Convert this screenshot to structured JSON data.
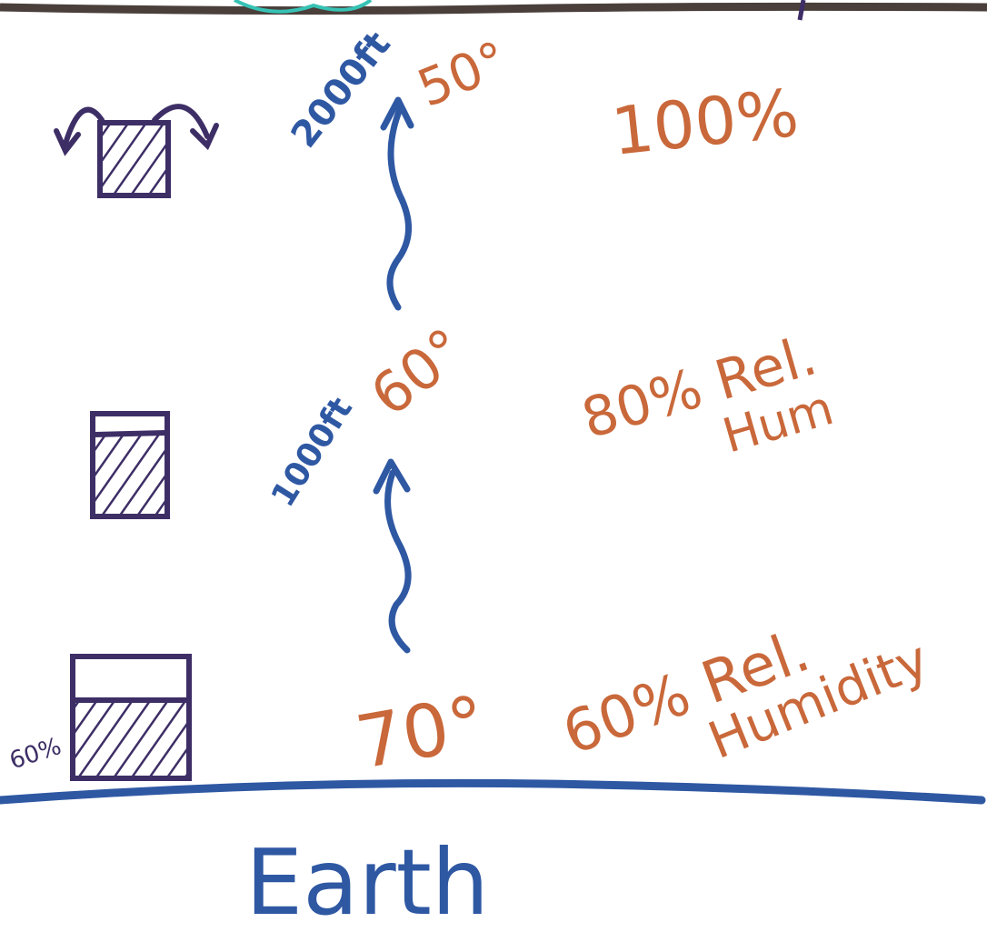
{
  "colors": {
    "blue_ink": "#2f58a3",
    "orange_ink": "#c9683a",
    "purple_ink": "#3d2e66",
    "top_border": "#4a3f3a",
    "teal_scribble": "#36c2b4"
  },
  "altitudes": {
    "high": "2000ft",
    "mid": "1000ft"
  },
  "temperatures": {
    "high": "50°",
    "mid": "60°",
    "ground": "70°"
  },
  "humidity": {
    "high": "100%",
    "mid_line1": "80% Rel.",
    "mid_line2": "Hum",
    "ground_line1": "60% Rel.",
    "ground_line2": "Humidity"
  },
  "ground_box_label": "60%",
  "ground_label": "Earth",
  "boxes": [
    {
      "level": "top",
      "fill_fraction": 1.0
    },
    {
      "level": "middle",
      "fill_fraction": 0.8
    },
    {
      "level": "bottom",
      "fill_fraction": 0.6
    }
  ],
  "icons": {
    "overflow_arrows": "curved-overflow-arrows-icon",
    "rise_arrows": "wavy-up-arrow-icon"
  }
}
